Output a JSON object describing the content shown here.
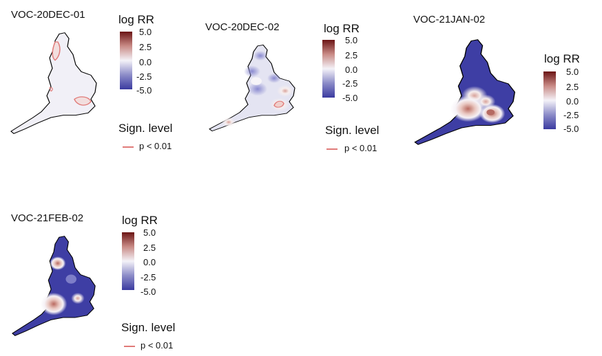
{
  "panels": [
    {
      "title": "VOC-20DEC-01",
      "scale": "log RR",
      "ticks": [
        "5.0",
        "2.5",
        "0.0",
        "-2.5",
        "-5.0"
      ],
      "sign_title": "Sign. level",
      "sign_label": "p < 0.01"
    },
    {
      "title": "VOC-20DEC-02",
      "scale": "log RR",
      "ticks": [
        "5.0",
        "2.5",
        "0.0",
        "-2.5",
        "-5.0"
      ],
      "sign_title": "Sign. level",
      "sign_label": "p < 0.01"
    },
    {
      "title": "VOC-21JAN-02",
      "scale": "log RR",
      "ticks": [
        "5.0",
        "2.5",
        "0.0",
        "-2.5",
        "-5.0"
      ]
    },
    {
      "title": "VOC-21FEB-02",
      "scale": "log RR",
      "ticks": [
        "5.0",
        "2.5",
        "0.0",
        "-2.5",
        "-5.0"
      ],
      "sign_title": "Sign. level",
      "sign_label": "p < 0.01"
    }
  ],
  "colors": {
    "high": "#6b1414",
    "mid": "#f4f2f8",
    "low": "#3a3aa0",
    "significance": "#e07a78"
  }
}
